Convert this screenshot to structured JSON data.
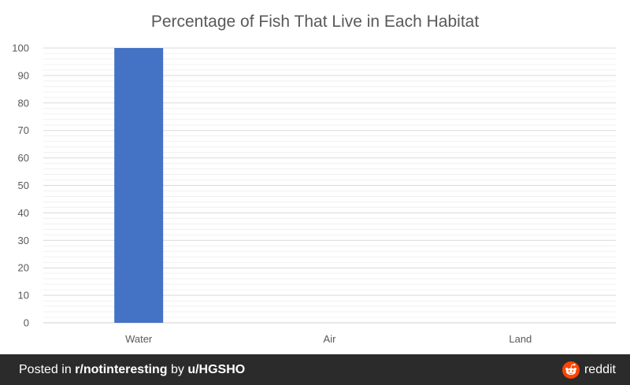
{
  "chart_data": {
    "type": "bar",
    "title": "Percentage of Fish That Live in Each Habitat",
    "categories": [
      "Water",
      "Air",
      "Land"
    ],
    "values": [
      100,
      0,
      0
    ],
    "xlabel": "",
    "ylabel": "",
    "ylim": [
      0,
      100
    ],
    "yticks": [
      "0",
      "10",
      "20",
      "30",
      "40",
      "50",
      "60",
      "70",
      "80",
      "90",
      "100"
    ],
    "grid": true,
    "legend": "none",
    "bar_color": "#4472c4"
  },
  "footer": {
    "posted_in": "Posted in",
    "subreddit": "r/notinteresting",
    "by": "by",
    "user": "u/HGSHO",
    "brand": "reddit",
    "logo_icon": "reddit-alien-icon",
    "logo_color": "#ff4500",
    "background": "#2b2b2b"
  }
}
